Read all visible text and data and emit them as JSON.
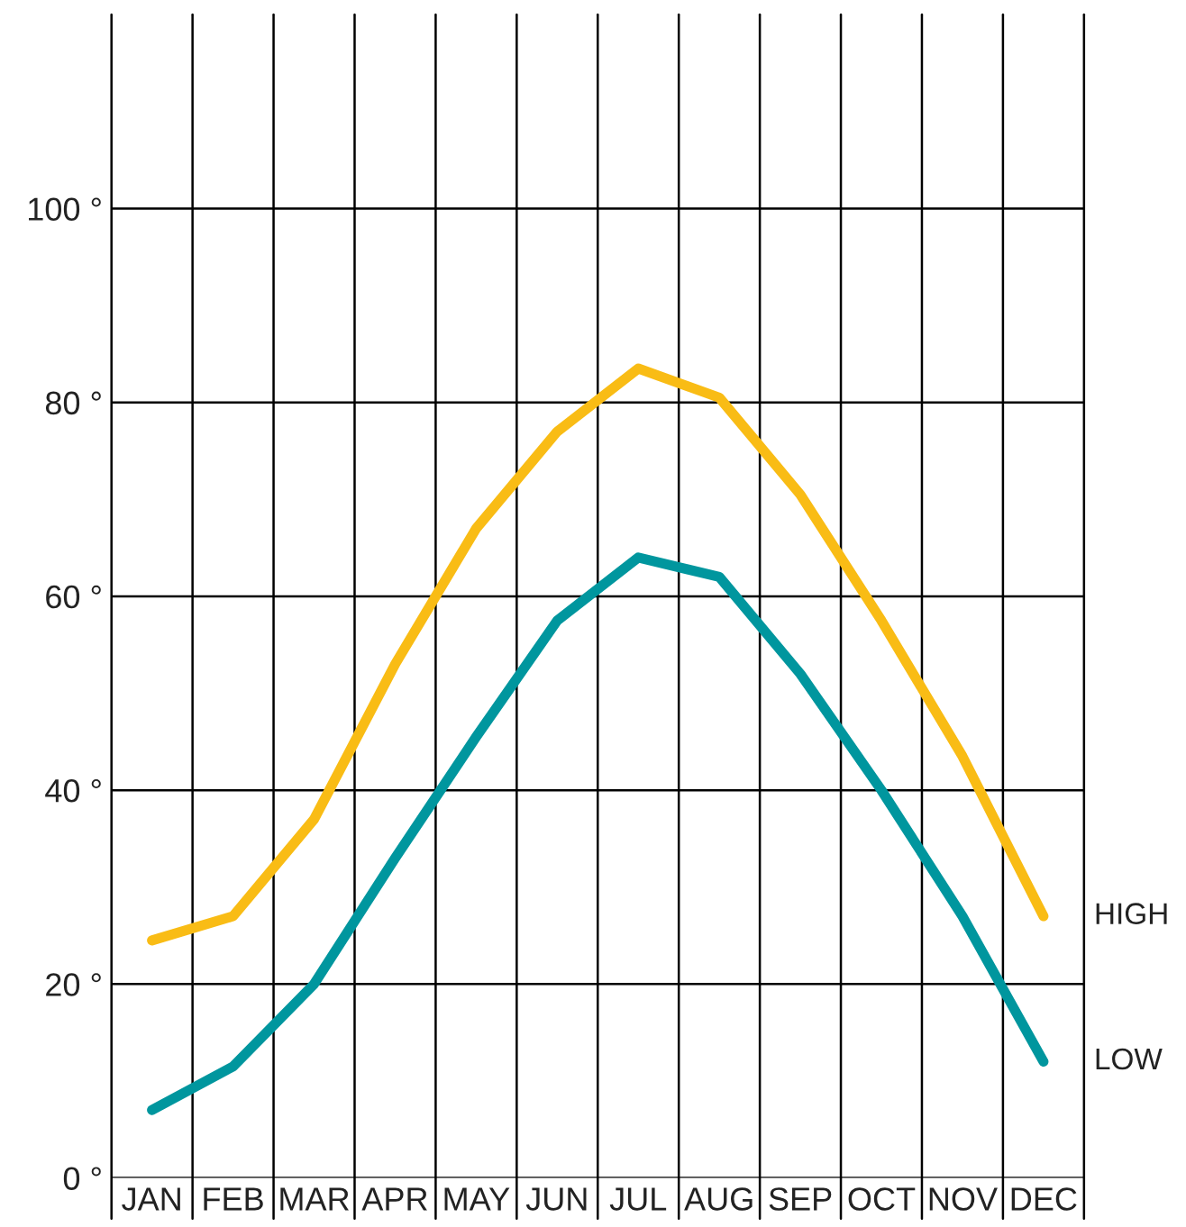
{
  "chart_data": {
    "type": "line",
    "categories": [
      "JAN",
      "FEB",
      "MAR",
      "APR",
      "MAY",
      "JUN",
      "JUL",
      "AUG",
      "SEP",
      "OCT",
      "NOV",
      "DEC"
    ],
    "series": [
      {
        "name": "HIGH",
        "color": "#f9bc15",
        "values": [
          24.5,
          27,
          37,
          53,
          67,
          77,
          83.5,
          80.5,
          70.5,
          57.5,
          43.5,
          27
        ]
      },
      {
        "name": "LOW",
        "color": "#00969e",
        "values": [
          7,
          11.5,
          20,
          33,
          45.5,
          57.5,
          64,
          62,
          52,
          40,
          27,
          12
        ]
      }
    ],
    "ylim": [
      0,
      120
    ],
    "yticks": [
      {
        "value": 0,
        "label": "0 °"
      },
      {
        "value": 20,
        "label": "20 °"
      },
      {
        "value": 40,
        "label": "40 °"
      },
      {
        "value": 60,
        "label": "60 °"
      },
      {
        "value": 80,
        "label": "80 °"
      },
      {
        "value": 100,
        "label": "100 °"
      }
    ],
    "grid": true,
    "legend": false,
    "marker": "none",
    "line_style": "solid"
  }
}
